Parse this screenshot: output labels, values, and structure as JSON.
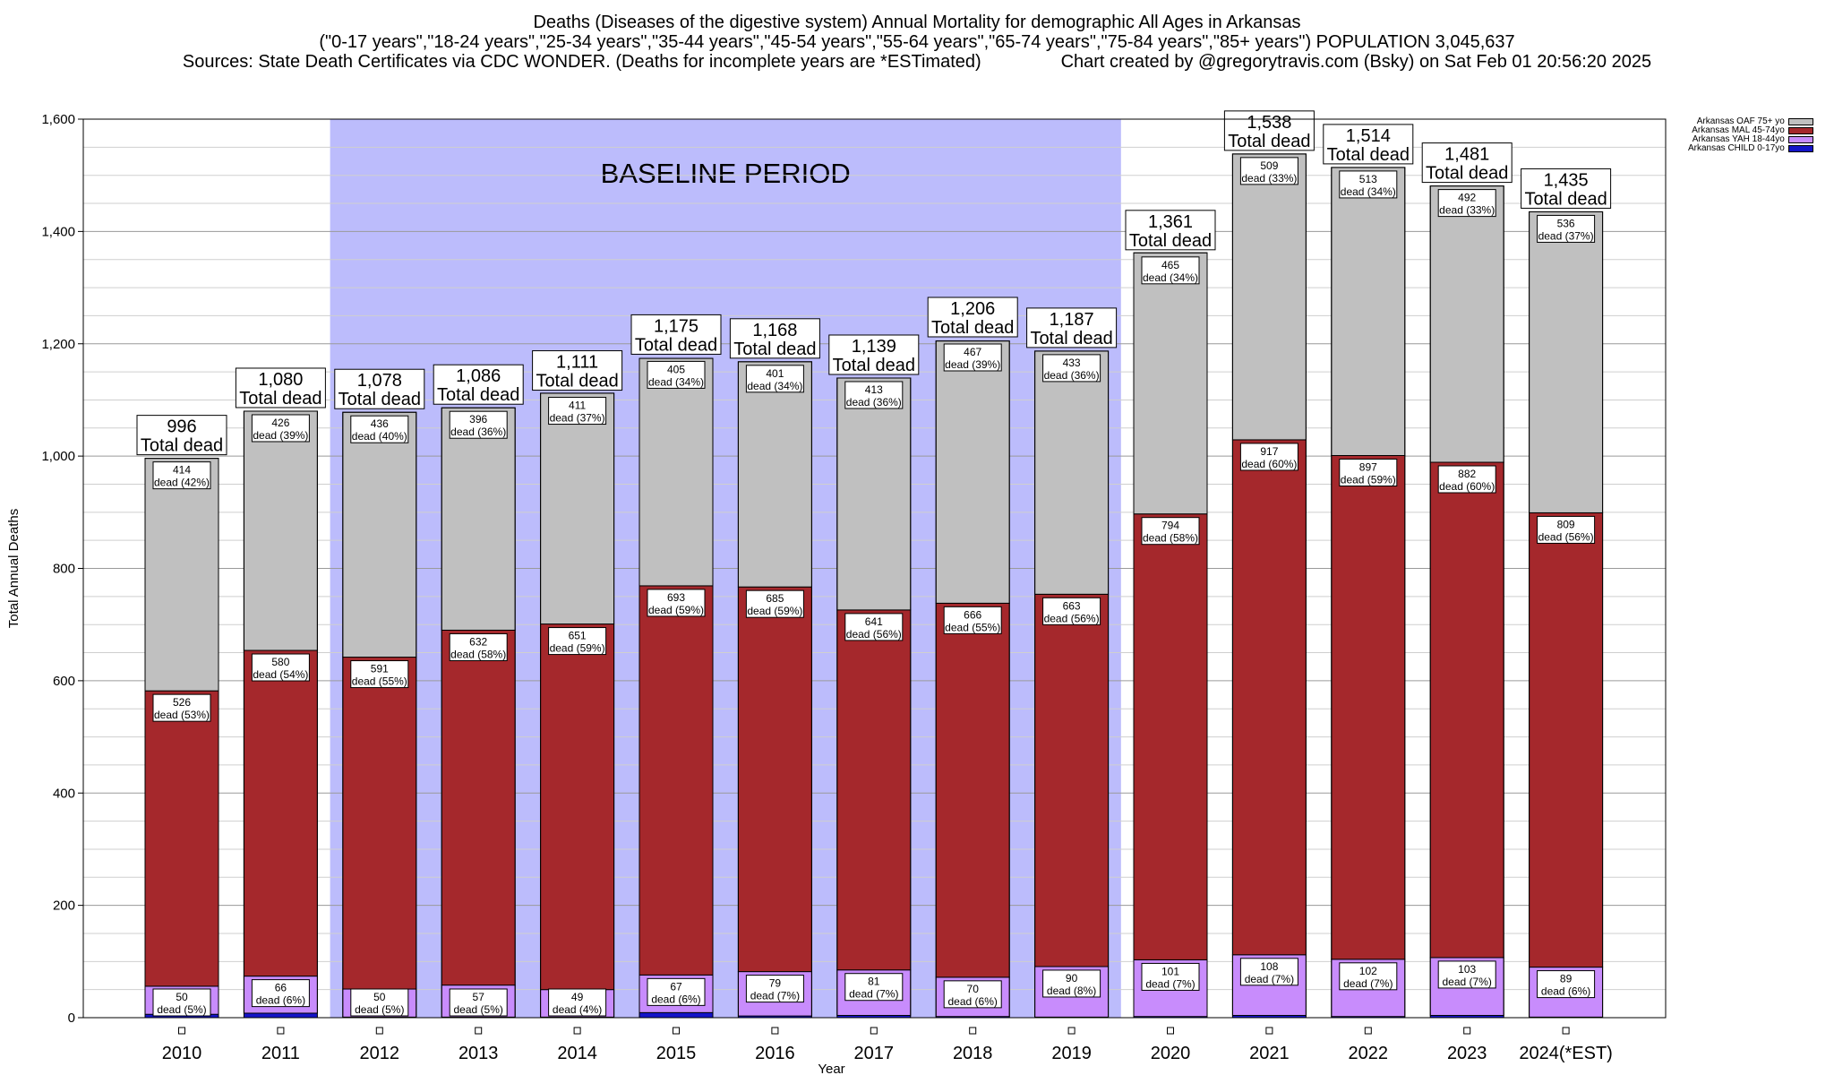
{
  "header": {
    "line1": "Deaths (Diseases of the digestive system) Annual Mortality for demographic All Ages in Arkansas",
    "line2": "(\"0-17 years\",\"18-24 years\",\"25-34 years\",\"35-44 years\",\"45-54 years\",\"55-64 years\",\"65-74 years\",\"75-84 years\",\"85+ years\") POPULATION 3,045,637",
    "line3": "Sources: State Death Certificates via CDC WONDER. (Deaths for incomplete years are *ESTimated)                Chart created by @gregorytravis.com (Bsky) on Sat Feb 01 20:56:20 2025"
  },
  "chart_data": {
    "type": "bar",
    "stacked": true,
    "xlabel": "Year",
    "ylabel": "Total Annual Deaths",
    "ylim": [
      0,
      1600
    ],
    "yticks": [
      0,
      200,
      400,
      600,
      800,
      1000,
      1200,
      1400,
      1600
    ],
    "ytick_labels": [
      "0",
      "200",
      "400",
      "600",
      "800",
      "1,000",
      "1,200",
      "1,400",
      "1,600"
    ],
    "categories": [
      "2010",
      "2011",
      "2012",
      "2013",
      "2014",
      "2015",
      "2016",
      "2017",
      "2018",
      "2019",
      "2020",
      "2021",
      "2022",
      "2023",
      "2024(*EST)"
    ],
    "baseline_period": {
      "label": "BASELINE PERIOD",
      "from": "2012",
      "to": "2019",
      "color": "#bcbcfc"
    },
    "grid": true,
    "legend_position": "top-right",
    "series": [
      {
        "name": "Arkansas CHILD 0-17yo",
        "color": "#1414c8",
        "values": [
          6,
          8,
          1,
          1,
          1,
          9,
          3,
          4,
          2,
          1,
          2,
          4,
          2,
          4,
          1
        ]
      },
      {
        "name": "Arkansas YAH 18-44yo",
        "color": "#c88cfc",
        "values": [
          50,
          66,
          50,
          57,
          49,
          67,
          79,
          81,
          70,
          90,
          101,
          108,
          102,
          103,
          89
        ],
        "pcts": [
          "5%",
          "6%",
          "5%",
          "5%",
          "4%",
          "6%",
          "7%",
          "7%",
          "6%",
          "8%",
          "7%",
          "7%",
          "7%",
          "7%",
          "6%"
        ]
      },
      {
        "name": "Arkansas MAL 45-74yo",
        "color": "#a5282c",
        "values": [
          526,
          580,
          591,
          632,
          651,
          693,
          685,
          641,
          666,
          663,
          794,
          917,
          897,
          882,
          809
        ],
        "pcts": [
          "53%",
          "54%",
          "55%",
          "58%",
          "59%",
          "59%",
          "59%",
          "56%",
          "55%",
          "56%",
          "58%",
          "60%",
          "59%",
          "60%",
          "56%"
        ]
      },
      {
        "name": "Arkansas OAF 75+ yo",
        "color": "#c0c0c0",
        "values": [
          414,
          426,
          436,
          396,
          411,
          405,
          401,
          413,
          467,
          433,
          465,
          509,
          513,
          492,
          536
        ],
        "pcts": [
          "42%",
          "39%",
          "40%",
          "36%",
          "37%",
          "34%",
          "34%",
          "36%",
          "39%",
          "36%",
          "34%",
          "33%",
          "34%",
          "33%",
          "37%"
        ]
      }
    ],
    "totals": [
      996,
      1080,
      1078,
      1086,
      1111,
      1175,
      1168,
      1139,
      1206,
      1187,
      1361,
      1538,
      1514,
      1481,
      1435
    ],
    "total_labels": [
      "996",
      "1,080",
      "1,078",
      "1,086",
      "1,111",
      "1,175",
      "1,168",
      "1,139",
      "1,206",
      "1,187",
      "1,361",
      "1,538",
      "1,514",
      "1,481",
      "1,435"
    ],
    "total_suffix": "Total dead",
    "segment_prefix": "dead",
    "legend_order": [
      "Arkansas OAF 75+ yo",
      "Arkansas MAL 45-74yo",
      "Arkansas YAH 18-44yo",
      "Arkansas CHILD 0-17yo"
    ]
  }
}
